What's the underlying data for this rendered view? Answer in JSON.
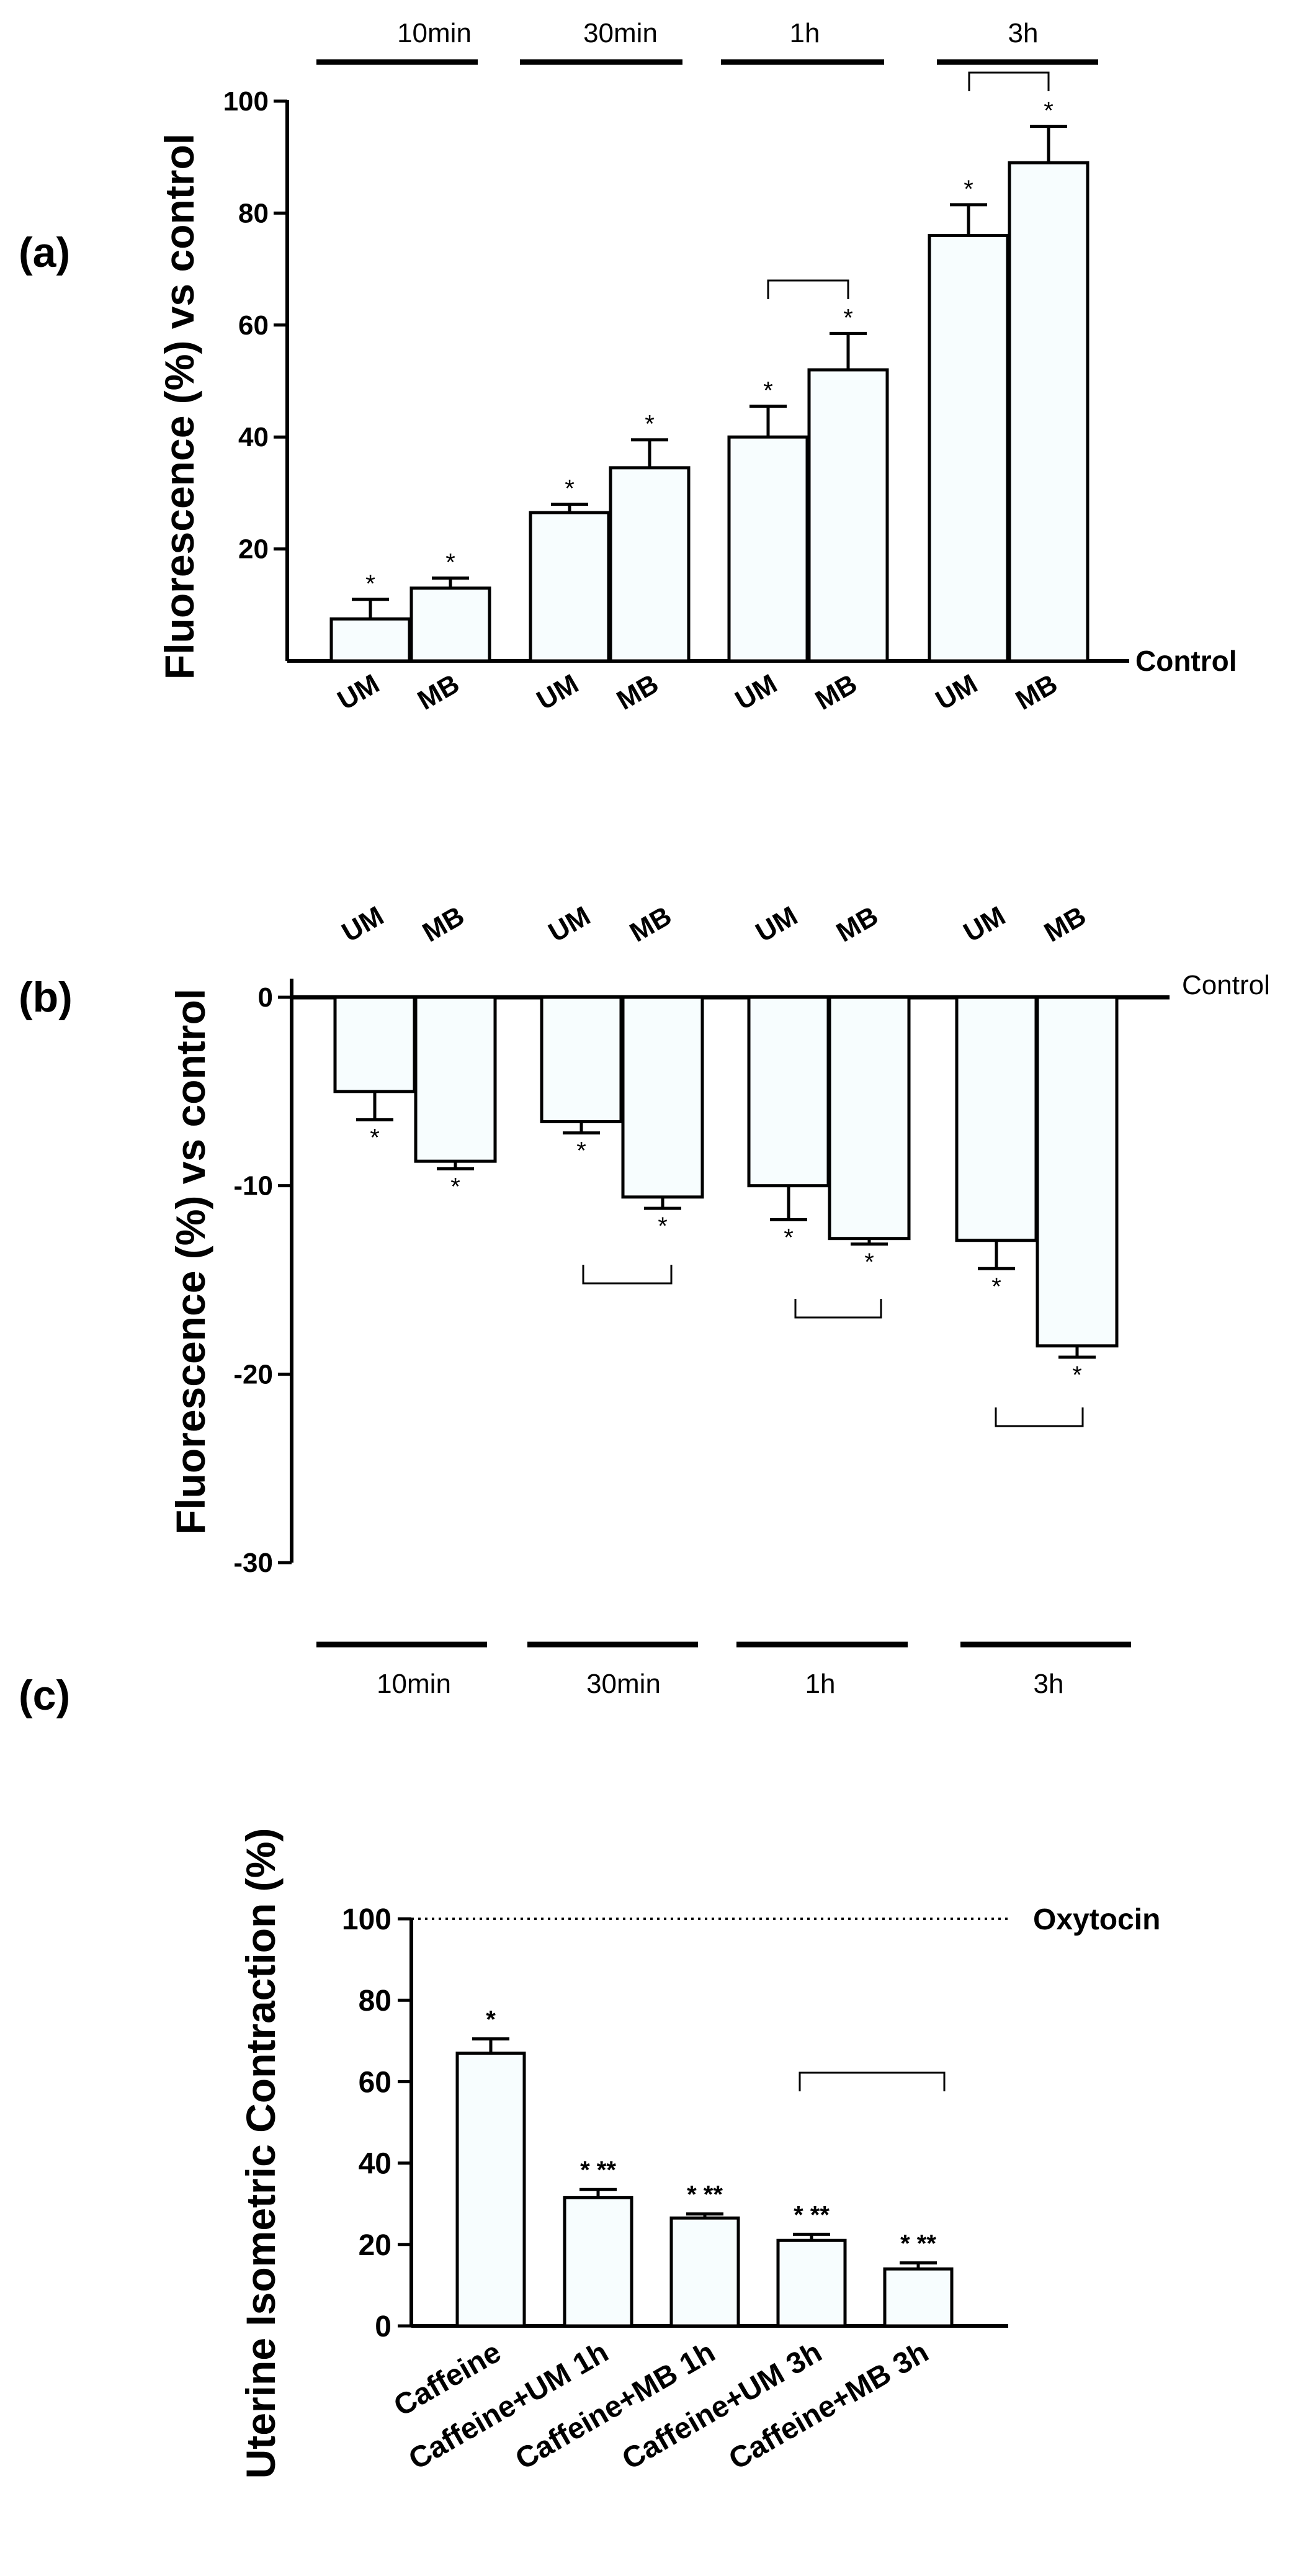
{
  "chart_data": [
    {
      "panel": "(a)",
      "type": "bar",
      "ylabel": "Fluorescence (%) vs control",
      "ylim": [
        0,
        100
      ],
      "yticks": [
        20,
        40,
        60,
        80,
        100
      ],
      "reference_label": "Control",
      "groups": [
        "10min",
        "30min",
        "1h",
        "3h"
      ],
      "bars": [
        {
          "group": "10min",
          "label": "UM",
          "value": 7.5,
          "error": 3.5,
          "sig": "*"
        },
        {
          "group": "10min",
          "label": "MB",
          "value": 13,
          "error": 1.8,
          "sig": "*"
        },
        {
          "group": "30min",
          "label": "UM",
          "value": 26.5,
          "error": 1.5,
          "sig": "*"
        },
        {
          "group": "30min",
          "label": "MB",
          "value": 34.5,
          "error": 5,
          "sig": "*"
        },
        {
          "group": "1h",
          "label": "UM",
          "value": 40,
          "error": 5.5,
          "sig": "*"
        },
        {
          "group": "1h",
          "label": "MB",
          "value": 52,
          "error": 6.5,
          "sig": "*"
        },
        {
          "group": "3h",
          "label": "UM",
          "value": 76,
          "error": 5.5,
          "sig": "*"
        },
        {
          "group": "3h",
          "label": "MB",
          "value": 89,
          "error": 6.5,
          "sig": "*"
        }
      ],
      "brackets": [
        {
          "group": "1h",
          "between": [
            "UM",
            "MB"
          ]
        },
        {
          "group": "3h",
          "between": [
            "UM",
            "MB"
          ]
        }
      ]
    },
    {
      "panel": "(b)",
      "type": "bar",
      "ylabel": "Fluorescence (%) vs control",
      "ylim": [
        -30,
        0
      ],
      "yticks": [
        0,
        -10,
        -20,
        -30
      ],
      "reference_label": "Control",
      "groups": [
        "10min",
        "30min",
        "1h",
        "3h"
      ],
      "bars": [
        {
          "group": "10min",
          "label": "UM",
          "value": -5,
          "error": 1.5,
          "sig": "*"
        },
        {
          "group": "10min",
          "label": "MB",
          "value": -8.7,
          "error": 0.4,
          "sig": "*"
        },
        {
          "group": "30min",
          "label": "UM",
          "value": -6.6,
          "error": 0.6,
          "sig": "*"
        },
        {
          "group": "30min",
          "label": "MB",
          "value": -10.6,
          "error": 0.6,
          "sig": "*"
        },
        {
          "group": "1h",
          "label": "UM",
          "value": -10,
          "error": 1.8,
          "sig": "*"
        },
        {
          "group": "1h",
          "label": "MB",
          "value": -12.8,
          "error": 0.3,
          "sig": "*"
        },
        {
          "group": "3h",
          "label": "UM",
          "value": -12.9,
          "error": 1.5,
          "sig": "*"
        },
        {
          "group": "3h",
          "label": "MB",
          "value": -18.5,
          "error": 0.6,
          "sig": "*"
        }
      ],
      "brackets": [
        {
          "group": "30min",
          "between": [
            "UM",
            "MB"
          ]
        },
        {
          "group": "1h",
          "between": [
            "UM",
            "MB"
          ]
        },
        {
          "group": "3h",
          "between": [
            "UM",
            "MB"
          ]
        }
      ]
    },
    {
      "panel": "(c)",
      "type": "bar",
      "ylabel": "Uterine Isometric Contraction (%)",
      "ylim": [
        0,
        100
      ],
      "yticks": [
        0,
        20,
        40,
        60,
        80,
        100
      ],
      "reference_label": "Oxytocin",
      "reference_value": 100,
      "bars": [
        {
          "label": "Caffeine",
          "value": 67,
          "error": 3.5,
          "sig": "*"
        },
        {
          "label": "Caffeine+UM 1h",
          "value": 31.5,
          "error": 2,
          "sig": "* **"
        },
        {
          "label": "Caffeine+MB 1h",
          "value": 26.5,
          "error": 1,
          "sig": "* **"
        },
        {
          "label": "Caffeine+UM 3h",
          "value": 21,
          "error": 1.5,
          "sig": "* **"
        },
        {
          "label": "Caffeine+MB 3h",
          "value": 14,
          "error": 1.5,
          "sig": "* **"
        }
      ],
      "brackets": [
        {
          "between": [
            "Caffeine+UM 3h",
            "Caffeine+MB 3h"
          ]
        }
      ]
    }
  ]
}
